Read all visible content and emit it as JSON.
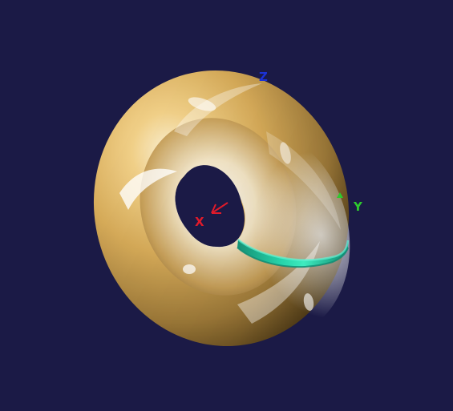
{
  "scene": {
    "background_color": "#1b1a46",
    "shape": "torus",
    "torus_colors": {
      "base": "#d9ad5a",
      "light": "#fff2d2",
      "shadow": "#4f3a15"
    },
    "ring_color": "#1ed2a0"
  },
  "axes": {
    "x": {
      "label": "X",
      "color": "#e01a2a"
    },
    "y": {
      "label": "Y",
      "color": "#2ec92e"
    },
    "z": {
      "label": "Z",
      "color": "#1b32d6"
    }
  }
}
